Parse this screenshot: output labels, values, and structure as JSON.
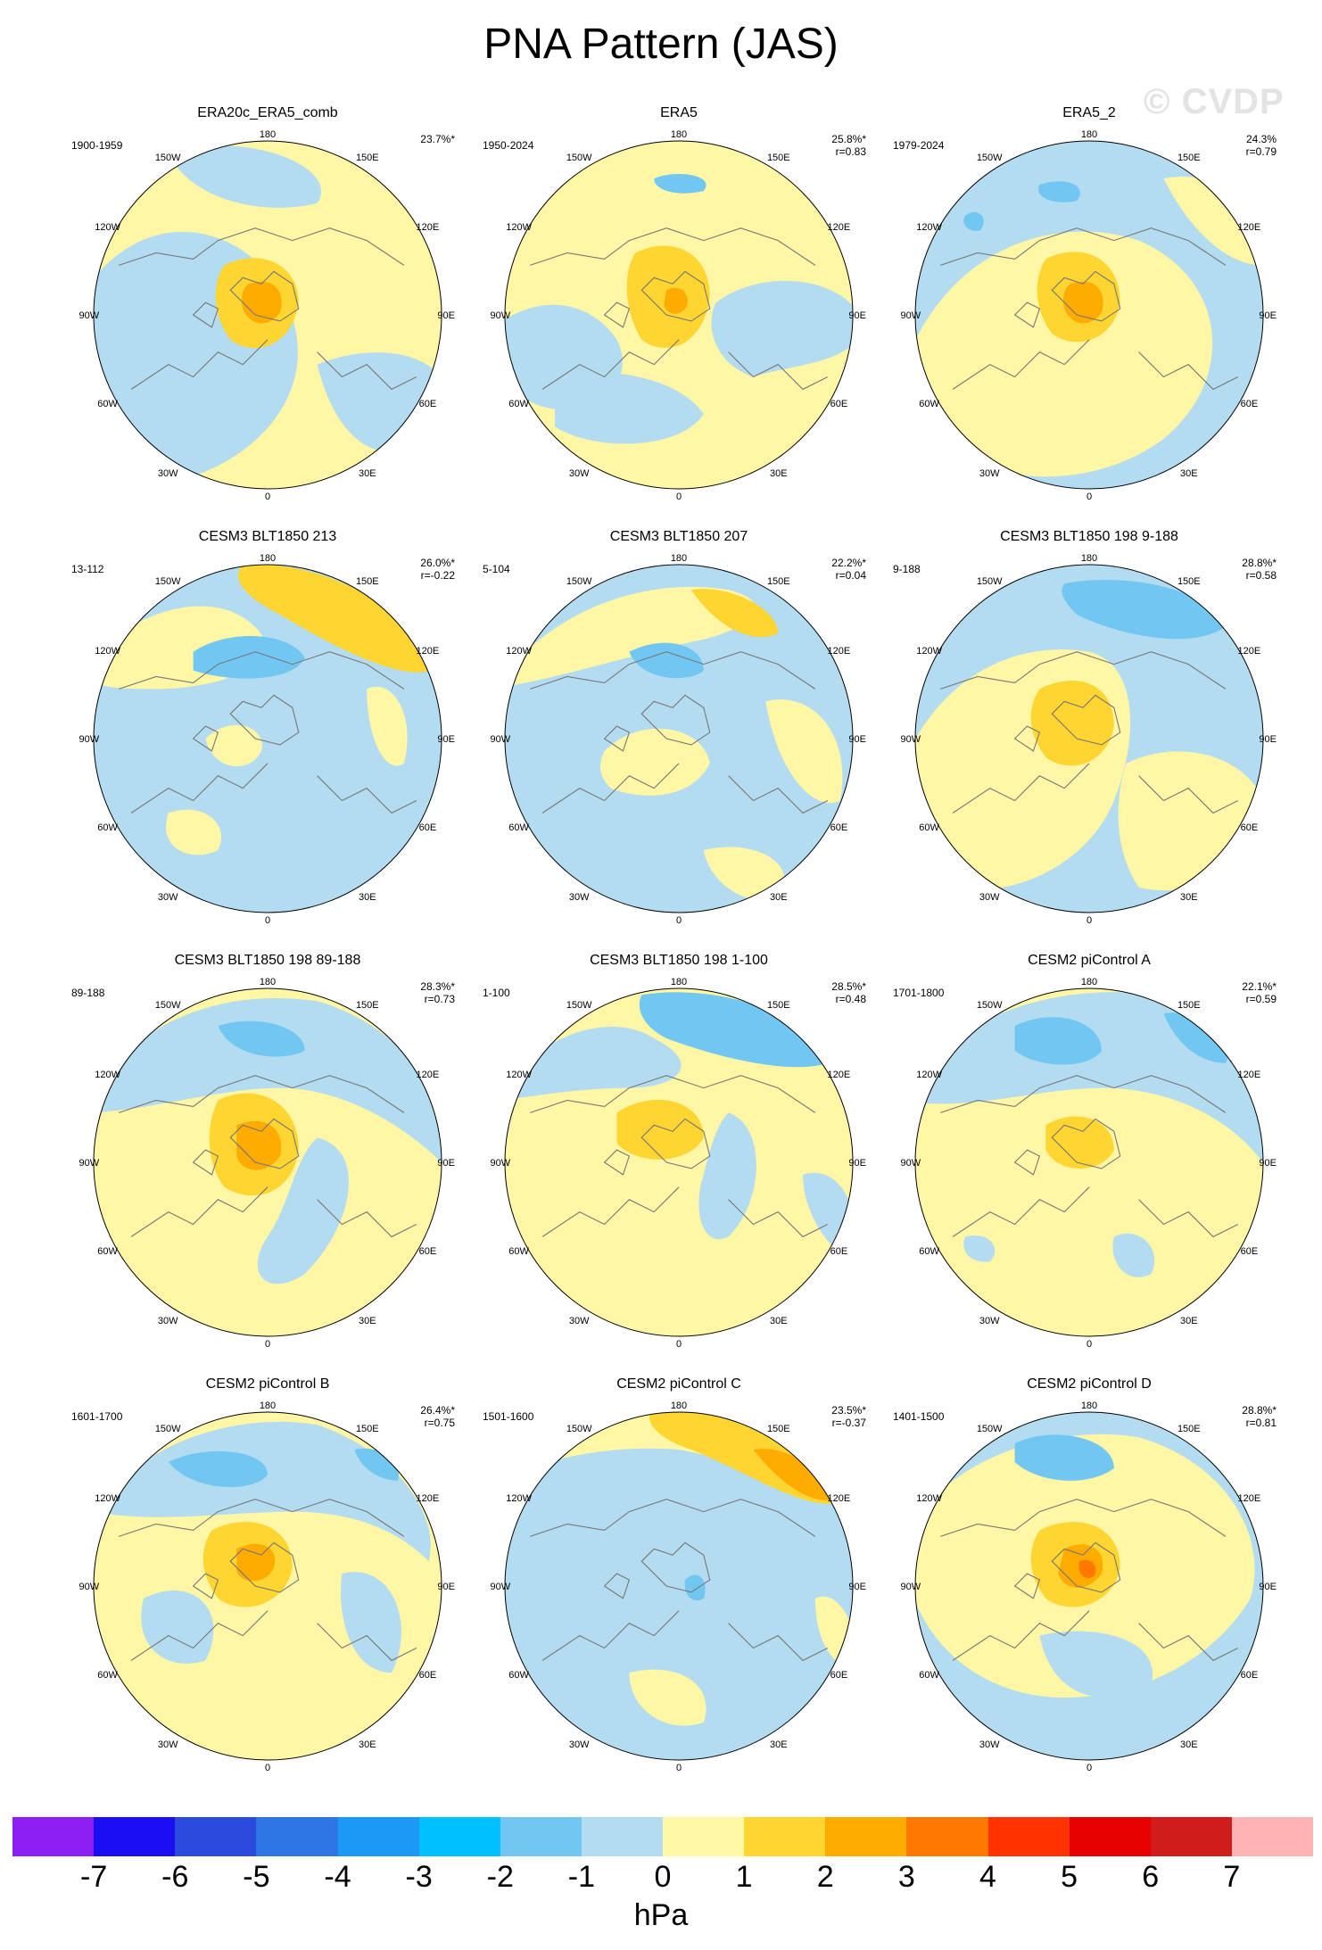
{
  "title": "PNA Pattern (JAS)",
  "watermark": "© CVDP",
  "lon_labels": [
    "180",
    "150E",
    "120E",
    "90E",
    "60E",
    "30E",
    "0",
    "30W",
    "60W",
    "90W",
    "120W",
    "150W"
  ],
  "colorbar": {
    "colors": [
      "#8b1ef0",
      "#1a0ff2",
      "#2a4bde",
      "#2e76e6",
      "#1c98f5",
      "#00c0ff",
      "#72c7f2",
      "#b4dcf1",
      "#fff6a6",
      "#ffd531",
      "#ffab00",
      "#ff7800",
      "#ff3200",
      "#e60000",
      "#d11c1c",
      "#ffb3b3"
    ],
    "ticks": [
      "-7",
      "-6",
      "-5",
      "-4",
      "-3",
      "-2",
      "-1",
      "0",
      "1",
      "2",
      "3",
      "4",
      "5",
      "6",
      "7"
    ],
    "units": "hPa"
  },
  "panels": [
    {
      "title": "ERA20c_ERA5_comb",
      "years": "1900-1959",
      "pct": "23.7%*",
      "corr": ""
    },
    {
      "title": "ERA5",
      "years": "1950-2024",
      "pct": "25.8%*",
      "corr": "r=0.83"
    },
    {
      "title": "ERA5_2",
      "years": "1979-2024",
      "pct": "24.3%",
      "corr": "r=0.79"
    },
    {
      "title": "CESM3 BLT1850 213",
      "years": "13-112",
      "pct": "26.0%*",
      "corr": "r=-0.22"
    },
    {
      "title": "CESM3 BLT1850 207",
      "years": "5-104",
      "pct": "22.2%*",
      "corr": "r=0.04"
    },
    {
      "title": "CESM3 BLT1850 198 9-188",
      "years": "9-188",
      "pct": "28.8%*",
      "corr": "r=0.58"
    },
    {
      "title": "CESM3 BLT1850 198 89-188",
      "years": "89-188",
      "pct": "28.3%*",
      "corr": "r=0.73"
    },
    {
      "title": "CESM3 BLT1850 198 1-100",
      "years": "1-100",
      "pct": "28.5%*",
      "corr": "r=0.48"
    },
    {
      "title": "CESM2 piControl A",
      "years": "1701-1800",
      "pct": "22.1%*",
      "corr": "r=0.59"
    },
    {
      "title": "CESM2 piControl B",
      "years": "1601-1700",
      "pct": "26.4%*",
      "corr": "r=0.75"
    },
    {
      "title": "CESM2 piControl C",
      "years": "1501-1600",
      "pct": "23.5%*",
      "corr": "r=-0.37"
    },
    {
      "title": "CESM2 piControl D",
      "years": "1401-1500",
      "pct": "28.8%*",
      "corr": "r=0.81"
    }
  ]
}
